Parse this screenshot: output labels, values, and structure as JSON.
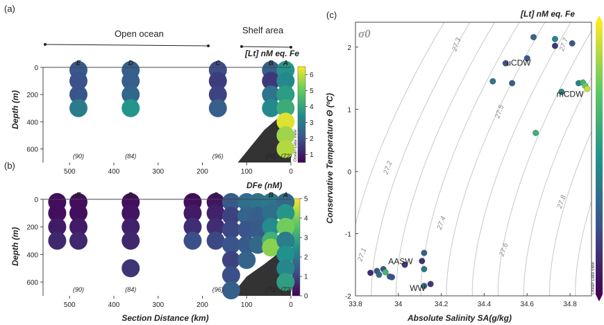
{
  "panels": {
    "a": "(a)",
    "b": "(b)",
    "c": "(c)"
  },
  "regions": {
    "open_ocean": "Open ocean",
    "shelf": "Shelf area"
  },
  "shared": {
    "xlabel": "Section Distance (km)",
    "ylabel": "Depth (m)",
    "x_ticks": [
      "500",
      "400",
      "300",
      "200",
      "100",
      "0"
    ],
    "y_ticks": [
      "0",
      "200",
      "400",
      "600"
    ],
    "station_labels": [
      "E",
      "D",
      "C",
      "B",
      "A"
    ],
    "n_labels": [
      "(90)",
      "(84)",
      "(96)",
      "(70)",
      "(72)"
    ],
    "watermark": "Ocean Data View"
  },
  "chart_data": [
    {
      "id": "a",
      "type": "scatter",
      "title": "[Lt] nM eq. Fe",
      "xlabel": "",
      "ylabel": "Depth (m)",
      "xlim": [
        560,
        0
      ],
      "ylim": [
        0,
        700
      ],
      "colorbar": {
        "range": [
          0.5,
          6.5
        ],
        "ticks": [
          "1",
          "2",
          "3",
          "4",
          "5",
          "6"
        ]
      },
      "colormap": [
        "#440154",
        "#3b528b",
        "#21918c",
        "#5ec962",
        "#fde725"
      ],
      "points": [
        {
          "x": 480,
          "y": 20,
          "v": 2.2
        },
        {
          "x": 480,
          "y": 100,
          "v": 2.0
        },
        {
          "x": 480,
          "y": 200,
          "v": 2.1
        },
        {
          "x": 480,
          "y": 300,
          "v": 3.0
        },
        {
          "x": 362,
          "y": 20,
          "v": 2.3
        },
        {
          "x": 362,
          "y": 100,
          "v": 2.3
        },
        {
          "x": 362,
          "y": 200,
          "v": 2.5
        },
        {
          "x": 362,
          "y": 300,
          "v": 3.6
        },
        {
          "x": 165,
          "y": 20,
          "v": 1.9
        },
        {
          "x": 165,
          "y": 100,
          "v": 1.6
        },
        {
          "x": 165,
          "y": 200,
          "v": 1.7
        },
        {
          "x": 165,
          "y": 300,
          "v": 2.3
        },
        {
          "x": 45,
          "y": 20,
          "v": 2.3
        },
        {
          "x": 45,
          "y": 100,
          "v": 1.5
        },
        {
          "x": 45,
          "y": 200,
          "v": 2.8
        },
        {
          "x": 45,
          "y": 300,
          "v": 3.3
        },
        {
          "x": 12,
          "y": 20,
          "v": 3.6
        },
        {
          "x": 12,
          "y": 100,
          "v": 3.3
        },
        {
          "x": 12,
          "y": 200,
          "v": 3.8
        },
        {
          "x": 12,
          "y": 300,
          "v": 4.2
        },
        {
          "x": 12,
          "y": 400,
          "v": 6.2
        },
        {
          "x": 12,
          "y": 500,
          "v": 5.6
        },
        {
          "x": 12,
          "y": 600,
          "v": 5.8
        }
      ]
    },
    {
      "id": "b",
      "type": "scatter",
      "title": "DFe (nM)",
      "xlabel": "Section Distance (km)",
      "ylabel": "Depth (m)",
      "xlim": [
        560,
        0
      ],
      "ylim": [
        0,
        700
      ],
      "colorbar": {
        "range": [
          0,
          5
        ],
        "ticks": [
          "0",
          "1",
          "2",
          "3",
          "4",
          "5"
        ]
      },
      "colormap": [
        "#440154",
        "#3b528b",
        "#21918c",
        "#5ec962",
        "#fde725"
      ],
      "points": [
        {
          "x": 528,
          "y": 20,
          "v": 0.2
        },
        {
          "x": 528,
          "y": 100,
          "v": 0.2
        },
        {
          "x": 528,
          "y": 200,
          "v": 0.4
        },
        {
          "x": 528,
          "y": 300,
          "v": 0.6
        },
        {
          "x": 480,
          "y": 20,
          "v": 0.2
        },
        {
          "x": 480,
          "y": 100,
          "v": 0.2
        },
        {
          "x": 480,
          "y": 200,
          "v": 0.4
        },
        {
          "x": 480,
          "y": 300,
          "v": 0.6
        },
        {
          "x": 362,
          "y": 20,
          "v": 0.2
        },
        {
          "x": 362,
          "y": 100,
          "v": 0.3
        },
        {
          "x": 362,
          "y": 200,
          "v": 0.5
        },
        {
          "x": 362,
          "y": 300,
          "v": 0.6
        },
        {
          "x": 362,
          "y": 500,
          "v": 0.8
        },
        {
          "x": 222,
          "y": 20,
          "v": 0.2
        },
        {
          "x": 222,
          "y": 100,
          "v": 0.4
        },
        {
          "x": 222,
          "y": 200,
          "v": 0.7
        },
        {
          "x": 222,
          "y": 300,
          "v": 1.2
        },
        {
          "x": 170,
          "y": 20,
          "v": 0.3
        },
        {
          "x": 170,
          "y": 100,
          "v": 0.5
        },
        {
          "x": 170,
          "y": 200,
          "v": 0.7
        },
        {
          "x": 170,
          "y": 300,
          "v": 1.1
        },
        {
          "x": 135,
          "y": 20,
          "v": 1.4
        },
        {
          "x": 135,
          "y": 120,
          "v": 1.0
        },
        {
          "x": 135,
          "y": 220,
          "v": 1.1
        },
        {
          "x": 135,
          "y": 330,
          "v": 1.3
        },
        {
          "x": 135,
          "y": 440,
          "v": 1.0
        },
        {
          "x": 135,
          "y": 550,
          "v": 1.2
        },
        {
          "x": 135,
          "y": 660,
          "v": 1.5
        },
        {
          "x": 100,
          "y": 20,
          "v": 1.8
        },
        {
          "x": 100,
          "y": 120,
          "v": 1.6
        },
        {
          "x": 100,
          "y": 220,
          "v": 1.3
        },
        {
          "x": 100,
          "y": 330,
          "v": 1.4
        },
        {
          "x": 100,
          "y": 440,
          "v": 1.6
        },
        {
          "x": 75,
          "y": 20,
          "v": 1.9
        },
        {
          "x": 75,
          "y": 120,
          "v": 1.5
        },
        {
          "x": 75,
          "y": 220,
          "v": 1.4
        },
        {
          "x": 75,
          "y": 330,
          "v": 1.7
        },
        {
          "x": 45,
          "y": 20,
          "v": 2.0
        },
        {
          "x": 45,
          "y": 100,
          "v": 1.8
        },
        {
          "x": 45,
          "y": 200,
          "v": 2.4
        },
        {
          "x": 45,
          "y": 300,
          "v": 3.2
        },
        {
          "x": 45,
          "y": 350,
          "v": 4.1
        },
        {
          "x": 12,
          "y": 20,
          "v": 1.7
        },
        {
          "x": 12,
          "y": 100,
          "v": 2.6
        },
        {
          "x": 12,
          "y": 200,
          "v": 3.9
        },
        {
          "x": 12,
          "y": 300,
          "v": 2.1
        },
        {
          "x": 12,
          "y": 400,
          "v": 2.5
        },
        {
          "x": 12,
          "y": 500,
          "v": 2.3
        },
        {
          "x": 12,
          "y": 600,
          "v": 2.8
        }
      ]
    },
    {
      "id": "c",
      "type": "scatter",
      "title": "[Lt] nM eq. Fe",
      "xlabel": "Absolute Salinity SA(g/kg)",
      "ylabel": "Conservative Temperature Θ (ºC)",
      "xlim": [
        33.8,
        34.9
      ],
      "ylim": [
        -2,
        2.4
      ],
      "x_ticks": [
        "33.8",
        "34",
        "34.2",
        "34.4",
        "34.6",
        "34.8"
      ],
      "y_ticks": [
        "-2",
        "-1",
        "0",
        "1",
        "2"
      ],
      "colorbar": {
        "range": [
          0.5,
          6.5
        ]
      },
      "colormap": [
        "#440154",
        "#3b528b",
        "#21918c",
        "#5ec962",
        "#fde725"
      ],
      "sigma_symbol": "σ0",
      "isopycnal_labels": [
        "27.1",
        "27.2",
        "27.3",
        "27.4",
        "27.5",
        "27.6",
        "27.7",
        "27.8"
      ],
      "water_masses": [
        {
          "name": "uCDW",
          "x": 34.56,
          "y": 1.7
        },
        {
          "name": "mCDW",
          "x": 34.8,
          "y": 1.2
        },
        {
          "name": "AASW",
          "x": 34.01,
          "y": -1.49
        },
        {
          "name": "WW",
          "x": 34.09,
          "y": -1.92
        }
      ],
      "points": [
        {
          "x": 33.87,
          "y": -1.63,
          "v": 1.3
        },
        {
          "x": 33.9,
          "y": -1.6,
          "v": 2.2
        },
        {
          "x": 33.91,
          "y": -1.66,
          "v": 2.6
        },
        {
          "x": 33.93,
          "y": -1.57,
          "v": 2.2
        },
        {
          "x": 33.94,
          "y": -1.62,
          "v": 4.4
        },
        {
          "x": 33.96,
          "y": -1.69,
          "v": 2.3
        },
        {
          "x": 33.97,
          "y": -1.7,
          "v": 2.0
        },
        {
          "x": 34.03,
          "y": -1.5,
          "v": 1.6
        },
        {
          "x": 34.11,
          "y": -1.44,
          "v": 1.4
        },
        {
          "x": 34.12,
          "y": -1.31,
          "v": 2.3
        },
        {
          "x": 34.12,
          "y": -1.57,
          "v": 2.9
        },
        {
          "x": 34.12,
          "y": -1.84,
          "v": 2.6
        },
        {
          "x": 34.15,
          "y": -1.81,
          "v": 1.5
        },
        {
          "x": 34.44,
          "y": 1.45,
          "v": 2.8
        },
        {
          "x": 34.5,
          "y": 1.74,
          "v": 2.0
        },
        {
          "x": 34.53,
          "y": 1.42,
          "v": 2.3
        },
        {
          "x": 34.6,
          "y": 1.82,
          "v": 2.2
        },
        {
          "x": 34.63,
          "y": 2.16,
          "v": 2.5
        },
        {
          "x": 34.64,
          "y": 0.62,
          "v": 4.3
        },
        {
          "x": 34.73,
          "y": 2.13,
          "v": 3.3
        },
        {
          "x": 34.73,
          "y": 2.02,
          "v": 1.5
        },
        {
          "x": 34.76,
          "y": 1.28,
          "v": 3.2
        },
        {
          "x": 34.81,
          "y": 2.06,
          "v": 2.2
        },
        {
          "x": 34.84,
          "y": 1.42,
          "v": 3.2
        },
        {
          "x": 34.86,
          "y": 1.43,
          "v": 4.4
        },
        {
          "x": 34.87,
          "y": 1.38,
          "v": 5.1
        },
        {
          "x": 34.88,
          "y": 1.33,
          "v": 6.0
        }
      ]
    }
  ]
}
